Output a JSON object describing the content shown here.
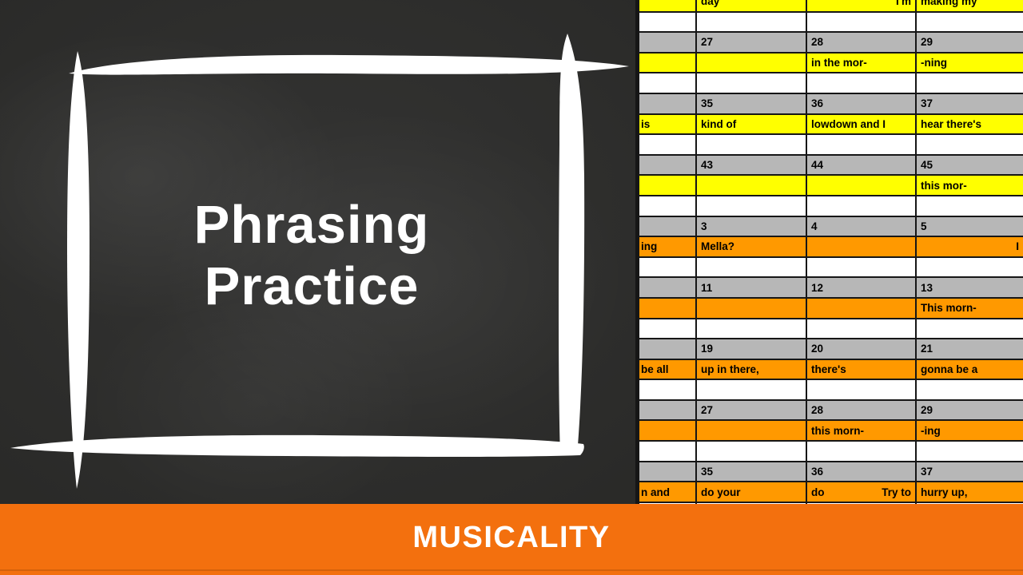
{
  "slide": {
    "title": {
      "line1": "Phrasing",
      "line2": "Practice"
    },
    "banner": {
      "label": "MUSICALITY",
      "bg": "#F3700E",
      "text_color": "#FFFFFF"
    },
    "board": {
      "bg": "#2B2A28",
      "frame_color": "#FFFFFF"
    }
  },
  "sheet": {
    "palette": {
      "yellow": "#FFFF00",
      "orange": "#FF9900",
      "gray": "#B7B7B7",
      "white": "#FFFFFF",
      "border": "#161616",
      "text": "#000000"
    },
    "rows": [
      {
        "kind": "lyric",
        "bg": "yellow",
        "cells": [
          {
            "l": ""
          },
          {
            "l": "day"
          },
          {
            "r": "I'm"
          },
          {
            "l": "making my"
          }
        ]
      },
      {
        "kind": "spacer",
        "cells": []
      },
      {
        "kind": "bars",
        "cells": [
          {
            "l": ""
          },
          {
            "l": "27"
          },
          {
            "l": "28"
          },
          {
            "l": "29"
          }
        ]
      },
      {
        "kind": "lyric",
        "bg": "yellow",
        "cells": [
          {
            "l": ""
          },
          {
            "l": ""
          },
          {
            "l": "in the mor-"
          },
          {
            "l": "-ning"
          }
        ]
      },
      {
        "kind": "spacer",
        "cells": []
      },
      {
        "kind": "bars",
        "cells": [
          {
            "l": ""
          },
          {
            "l": "35"
          },
          {
            "l": "36"
          },
          {
            "l": "37"
          }
        ]
      },
      {
        "kind": "lyric",
        "bg": "yellow",
        "cells": [
          {
            "l": "is"
          },
          {
            "l": "kind of"
          },
          {
            "l": "lowdown and I"
          },
          {
            "l": "hear there's"
          }
        ]
      },
      {
        "kind": "spacer",
        "cells": []
      },
      {
        "kind": "bars",
        "cells": [
          {
            "l": ""
          },
          {
            "l": "43"
          },
          {
            "l": "44"
          },
          {
            "l": "45"
          }
        ]
      },
      {
        "kind": "lyric",
        "bg": "yellow",
        "cells": [
          {
            "l": ""
          },
          {
            "l": ""
          },
          {
            "l": ""
          },
          {
            "l": "this mor-"
          }
        ]
      },
      {
        "kind": "spacer",
        "cells": []
      },
      {
        "kind": "bars",
        "cells": [
          {
            "l": ""
          },
          {
            "l": "3"
          },
          {
            "l": "4"
          },
          {
            "l": "5"
          }
        ]
      },
      {
        "kind": "lyric",
        "bg": "orange",
        "cells": [
          {
            "l": "ing"
          },
          {
            "l": "Mella?"
          },
          {
            "l": ""
          },
          {
            "r": "I"
          }
        ]
      },
      {
        "kind": "spacer",
        "cells": []
      },
      {
        "kind": "bars",
        "cells": [
          {
            "l": ""
          },
          {
            "l": "11"
          },
          {
            "l": "12"
          },
          {
            "l": "13"
          }
        ]
      },
      {
        "kind": "lyric",
        "bg": "orange",
        "cells": [
          {
            "l": ""
          },
          {
            "l": ""
          },
          {
            "l": ""
          },
          {
            "l": "This morn-"
          }
        ]
      },
      {
        "kind": "spacer",
        "cells": []
      },
      {
        "kind": "bars",
        "cells": [
          {
            "l": ""
          },
          {
            "l": "19"
          },
          {
            "l": "20"
          },
          {
            "l": "21"
          }
        ]
      },
      {
        "kind": "lyric",
        "bg": "orange",
        "cells": [
          {
            "l": "be all"
          },
          {
            "l": "up in there,"
          },
          {
            "l": "there's"
          },
          {
            "l": "gonna be a"
          }
        ]
      },
      {
        "kind": "spacer",
        "cells": []
      },
      {
        "kind": "bars",
        "cells": [
          {
            "l": ""
          },
          {
            "l": "27"
          },
          {
            "l": "28"
          },
          {
            "l": "29"
          }
        ]
      },
      {
        "kind": "lyric",
        "bg": "orange",
        "cells": [
          {
            "l": ""
          },
          {
            "l": ""
          },
          {
            "l": "this morn-"
          },
          {
            "l": "-ing"
          }
        ]
      },
      {
        "kind": "spacer",
        "cells": []
      },
      {
        "kind": "bars",
        "cells": [
          {
            "l": ""
          },
          {
            "l": "35"
          },
          {
            "l": "36"
          },
          {
            "l": "37"
          }
        ]
      },
      {
        "kind": "lyric",
        "bg": "orange",
        "cells": [
          {
            "l": "n and"
          },
          {
            "l": "do your"
          },
          {
            "l": "do",
            "r": "Try to"
          },
          {
            "l": "hurry up,"
          }
        ]
      },
      {
        "kind": "spacer",
        "cells": []
      }
    ]
  }
}
